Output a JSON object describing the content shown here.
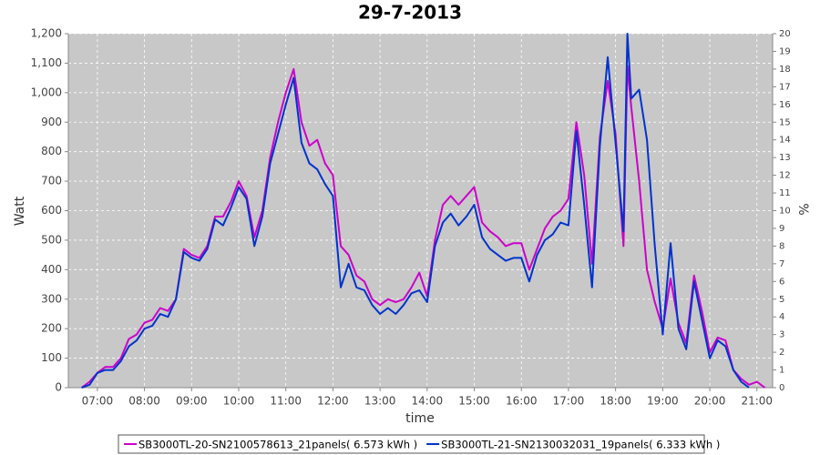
{
  "chart_data": {
    "type": "line",
    "title": "29-7-2013",
    "x_label": "time",
    "y_label": "Watt",
    "y2_label": "%",
    "x": [
      "06:40",
      "06:50",
      "07:00",
      "07:10",
      "07:20",
      "07:30",
      "07:40",
      "07:50",
      "08:00",
      "08:10",
      "08:20",
      "08:30",
      "08:40",
      "08:50",
      "09:00",
      "09:10",
      "09:20",
      "09:30",
      "09:40",
      "09:50",
      "10:00",
      "10:10",
      "10:20",
      "10:30",
      "10:40",
      "10:50",
      "11:00",
      "11:10",
      "11:20",
      "11:30",
      "11:40",
      "11:50",
      "12:00",
      "12:10",
      "12:20",
      "12:30",
      "12:40",
      "12:50",
      "13:00",
      "13:10",
      "13:20",
      "13:30",
      "13:40",
      "13:50",
      "14:00",
      "14:10",
      "14:20",
      "14:30",
      "14:40",
      "14:50",
      "15:00",
      "15:10",
      "15:20",
      "15:30",
      "15:40",
      "15:50",
      "16:00",
      "16:10",
      "16:20",
      "16:30",
      "16:40",
      "16:50",
      "17:00",
      "17:10",
      "17:20",
      "17:30",
      "17:40",
      "17:50",
      "18:00",
      "18:10",
      "18:15",
      "18:20",
      "18:30",
      "18:40",
      "18:50",
      "19:00",
      "19:10",
      "19:20",
      "19:30",
      "19:40",
      "19:50",
      "20:00",
      "20:10",
      "20:20",
      "20:30",
      "20:40",
      "20:50",
      "21:00",
      "21:10"
    ],
    "series": [
      {
        "name": "SB3000TL-20-SN2100578613_21panels( 6.573 kWh )",
        "color": "#cc00cc",
        "values": [
          0,
          20,
          50,
          70,
          70,
          100,
          165,
          180,
          220,
          230,
          270,
          260,
          300,
          470,
          450,
          440,
          480,
          580,
          580,
          630,
          700,
          650,
          510,
          600,
          780,
          900,
          1000,
          1080,
          900,
          820,
          840,
          760,
          720,
          480,
          450,
          380,
          360,
          300,
          280,
          300,
          290,
          300,
          340,
          390,
          310,
          500,
          620,
          650,
          620,
          650,
          680,
          560,
          530,
          510,
          480,
          490,
          490,
          400,
          470,
          540,
          580,
          600,
          640,
          900,
          720,
          420,
          850,
          1040,
          860,
          480,
          1090,
          950,
          700,
          400,
          290,
          200,
          370,
          220,
          150,
          380,
          260,
          120,
          170,
          160,
          60,
          30,
          10,
          20,
          0
        ]
      },
      {
        "name": "SB3000TL-21-SN2130032031_19panels( 6.333 kWh )",
        "color": "#0033cc",
        "values": [
          0,
          10,
          50,
          60,
          60,
          90,
          140,
          160,
          200,
          210,
          250,
          240,
          300,
          460,
          440,
          430,
          470,
          570,
          550,
          610,
          680,
          640,
          480,
          580,
          760,
          860,
          960,
          1050,
          830,
          760,
          740,
          690,
          650,
          340,
          420,
          340,
          330,
          280,
          250,
          270,
          250,
          280,
          320,
          330,
          290,
          480,
          560,
          590,
          550,
          580,
          620,
          510,
          470,
          450,
          430,
          440,
          440,
          360,
          450,
          500,
          520,
          560,
          550,
          870,
          620,
          340,
          820,
          1120,
          830,
          530,
          1200,
          980,
          1010,
          840,
          480,
          180,
          490,
          200,
          130,
          360,
          230,
          100,
          160,
          140,
          60,
          20,
          0,
          null,
          null
        ]
      }
    ],
    "xlim": [
      "06:23",
      "21:20"
    ],
    "xticks": [
      "07:00",
      "08:00",
      "09:00",
      "10:00",
      "11:00",
      "12:00",
      "13:00",
      "14:00",
      "15:00",
      "16:00",
      "17:00",
      "18:00",
      "19:00",
      "20:00",
      "21:00"
    ],
    "ylim": [
      0,
      1200
    ],
    "yticks": [
      0,
      100,
      200,
      300,
      400,
      500,
      600,
      700,
      800,
      900,
      {
        "value": 1000,
        "label": "1,000"
      },
      {
        "value": 1100,
        "label": "1,100"
      },
      {
        "value": 1200,
        "label": "1,200"
      }
    ],
    "y2lim": [
      0,
      20
    ],
    "y2ticks": [
      0,
      1,
      2,
      3,
      4,
      5,
      6,
      7,
      8,
      9,
      10,
      11,
      12,
      13,
      14,
      15,
      16,
      17,
      18,
      19,
      20
    ],
    "grid": true,
    "legend": "bottom"
  }
}
